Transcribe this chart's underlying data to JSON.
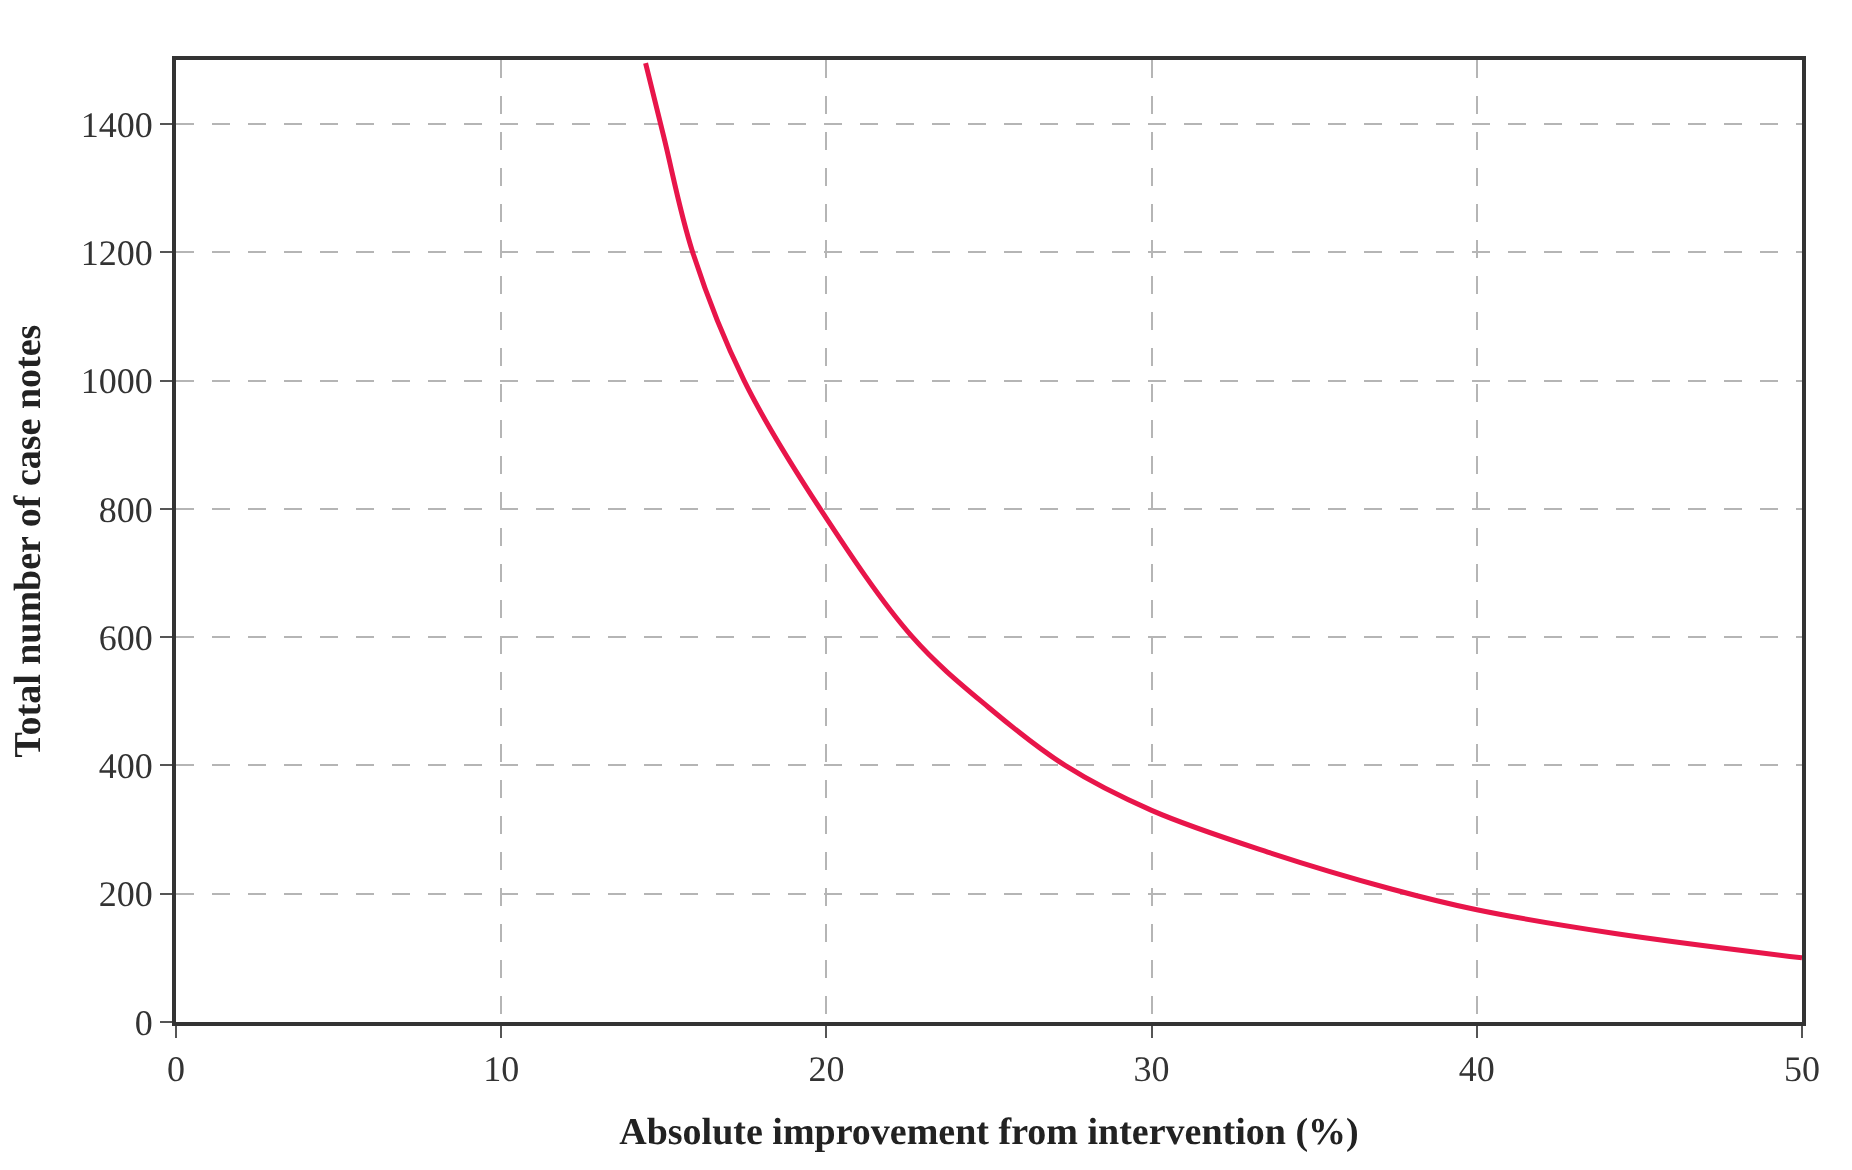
{
  "chart_data": {
    "type": "line",
    "xlabel": "Absolute improvement from intervention (%)",
    "ylabel": "Total number of case notes",
    "x": [
      14.44,
      15.0,
      15.89,
      17.47,
      19.81,
      22.65,
      25.0,
      27.34,
      30,
      33.57,
      37.4,
      40,
      44.25,
      50
    ],
    "series": [
      {
        "color": "#e8154a",
        "values": [
          1495,
          1380,
          1200,
          1000,
          800,
          600,
          490,
          400,
          330,
          265,
          207,
          175,
          138,
          100
        ]
      }
    ],
    "xlim": [
      0,
      50
    ],
    "xticks": [
      0,
      10,
      20,
      30,
      40,
      50
    ],
    "ylim": [
      0,
      1500
    ],
    "yticks": [
      0,
      200,
      400,
      600,
      800,
      1000,
      1200,
      1400
    ],
    "grid": true,
    "legend": false,
    "marker": "none",
    "line_style": "solid"
  }
}
